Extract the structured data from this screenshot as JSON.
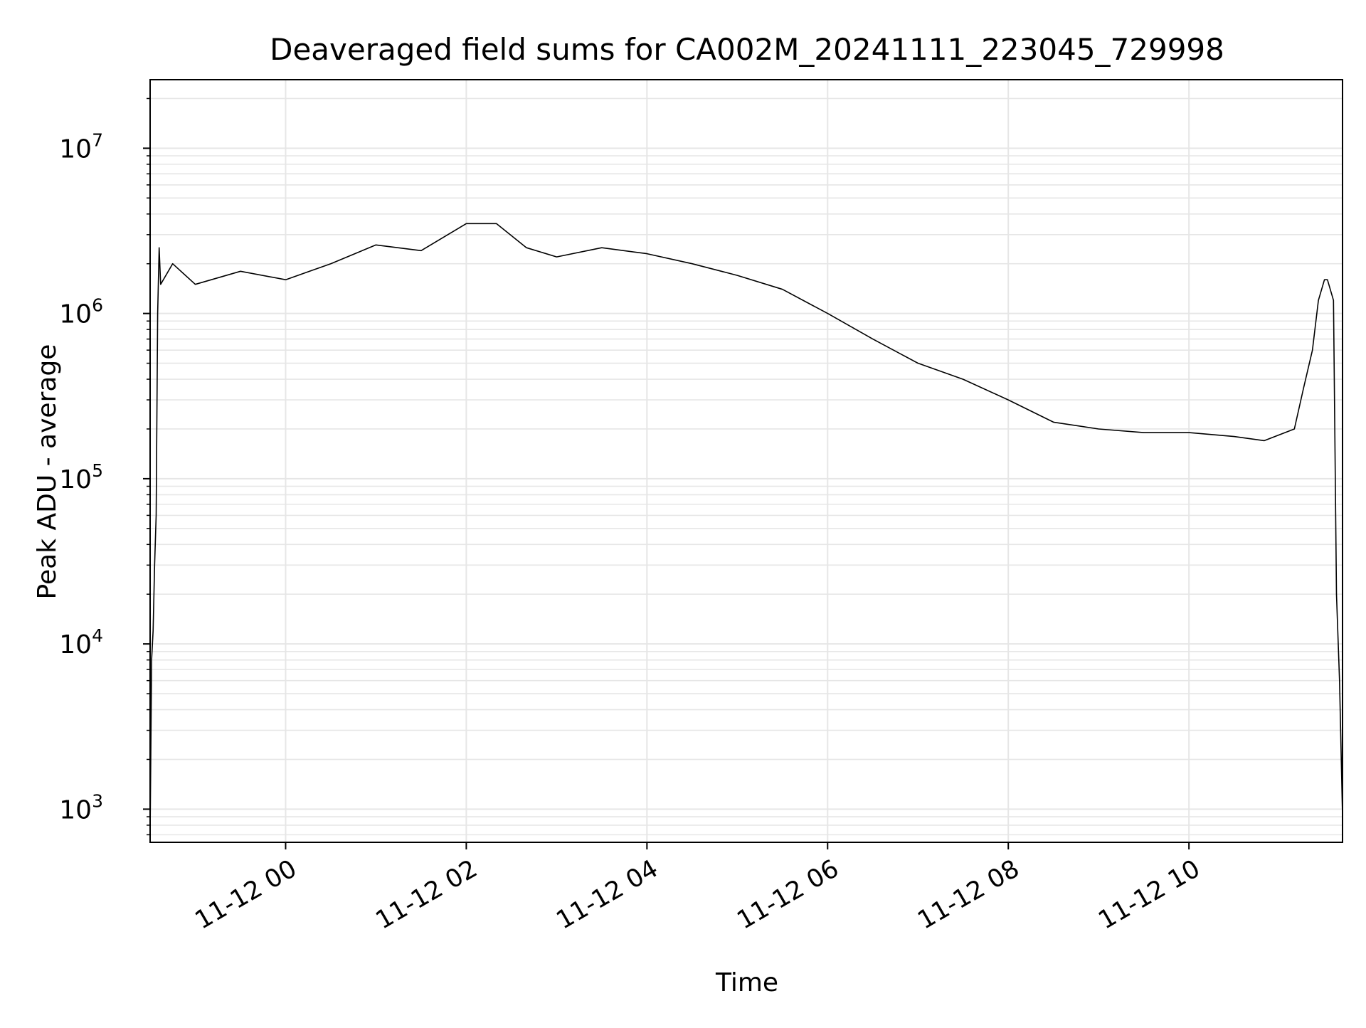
{
  "chart_data": {
    "type": "line",
    "title": "Deaveraged field sums for CA002M_20241111_223045_729998",
    "xlabel": "Time",
    "ylabel": "Peak ADU - average",
    "yscale": "log",
    "ylim": [
      630,
      26000000
    ],
    "xlim": [
      "2024-11-11 22:30",
      "2024-11-12 11:42"
    ],
    "x_ticks": [
      "11-12 00",
      "11-12 02",
      "11-12 04",
      "11-12 06",
      "11-12 08",
      "11-12 10"
    ],
    "x_tick_times": [
      "2024-11-12 00:00",
      "2024-11-12 02:00",
      "2024-11-12 04:00",
      "2024-11-12 06:00",
      "2024-11-12 08:00",
      "2024-11-12 10:00"
    ],
    "y_ticks": [
      {
        "base": "10",
        "exp": "3",
        "value": 1000
      },
      {
        "base": "10",
        "exp": "4",
        "value": 10000
      },
      {
        "base": "10",
        "exp": "5",
        "value": 100000
      },
      {
        "base": "10",
        "exp": "6",
        "value": 1000000
      },
      {
        "base": "10",
        "exp": "7",
        "value": 10000000
      }
    ],
    "grid": true,
    "line_color": "#000000",
    "grid_color": "#e6e6e6",
    "series": [
      {
        "name": "",
        "x": [
          "2024-11-11 22:30",
          "2024-11-11 22:31",
          "2024-11-11 22:32",
          "2024-11-11 22:33",
          "2024-11-11 22:34",
          "2024-11-11 22:35",
          "2024-11-11 22:36",
          "2024-11-11 22:37",
          "2024-11-11 22:45",
          "2024-11-11 23:00",
          "2024-11-11 23:30",
          "2024-11-12 00:00",
          "2024-11-12 00:30",
          "2024-11-12 01:00",
          "2024-11-12 01:30",
          "2024-11-12 02:00",
          "2024-11-12 02:20",
          "2024-11-12 02:40",
          "2024-11-12 03:00",
          "2024-11-12 03:30",
          "2024-11-12 04:00",
          "2024-11-12 04:30",
          "2024-11-12 05:00",
          "2024-11-12 05:30",
          "2024-11-12 06:00",
          "2024-11-12 06:30",
          "2024-11-12 07:00",
          "2024-11-12 07:30",
          "2024-11-12 08:00",
          "2024-11-12 08:30",
          "2024-11-12 09:00",
          "2024-11-12 09:30",
          "2024-11-12 10:00",
          "2024-11-12 10:30",
          "2024-11-12 10:50",
          "2024-11-12 11:10",
          "2024-11-12 11:16",
          "2024-11-12 11:22",
          "2024-11-12 11:26",
          "2024-11-12 11:30",
          "2024-11-12 11:32",
          "2024-11-12 11:36",
          "2024-11-12 11:38",
          "2024-11-12 11:40",
          "2024-11-12 11:42"
        ],
        "y": [
          700,
          8000,
          12000,
          30000,
          60000,
          1000000,
          2500000,
          1500000,
          2000000,
          1500000,
          1800000,
          1600000,
          2000000,
          2600000,
          2400000,
          3500000,
          3500000,
          2500000,
          2200000,
          2500000,
          2300000,
          2000000,
          1700000,
          1400000,
          1000000,
          700000,
          500000,
          400000,
          300000,
          220000,
          200000,
          190000,
          190000,
          180000,
          170000,
          200000,
          350000,
          600000,
          1200000,
          1600000,
          1600000,
          1200000,
          20000,
          6000,
          900
        ]
      }
    ]
  }
}
